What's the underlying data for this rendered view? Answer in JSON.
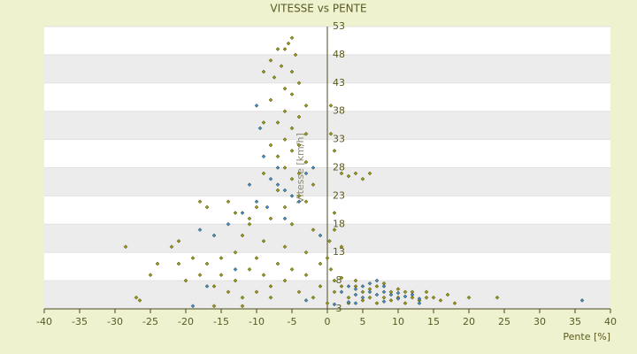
{
  "chart_data": {
    "type": "scatter",
    "title": "VITESSE vs PENTE",
    "xlabel": "Pente [%]",
    "ylabel": "Vitesse [km/h]",
    "xlim": [
      -40,
      40
    ],
    "xticks": [
      -40,
      -35,
      -30,
      -25,
      -20,
      -15,
      -10,
      -5,
      0,
      5,
      10,
      15,
      20,
      25,
      30,
      35,
      40
    ],
    "ylim": [
      3,
      53
    ],
    "yticks": [
      3,
      8,
      13,
      18,
      23,
      28,
      33,
      38,
      43,
      48,
      53
    ],
    "grid": true,
    "series": [
      {
        "color": "#9a9a10",
        "x": [
          -5,
          -5.5,
          -6,
          -7,
          -8,
          -4.5,
          -6.5,
          -5,
          -7.5,
          -9,
          -4,
          -6,
          -5,
          -8,
          -3,
          -6,
          -4,
          -7,
          -5,
          -9,
          -3,
          -6,
          -4,
          -8,
          -5,
          -7,
          -3,
          -6,
          -4,
          -9,
          -5,
          -2,
          -7,
          -4,
          -3,
          -6,
          -10,
          -8,
          -5,
          -2,
          -11,
          -12,
          -9,
          -6,
          -3,
          -13,
          -15,
          -17,
          -19,
          -21,
          -20,
          -18,
          -16,
          -14,
          -12,
          -10,
          -8,
          -6,
          -4,
          -2,
          -25,
          -27,
          -26.5,
          -28.5,
          -24,
          -22,
          -21,
          -18,
          -17,
          -14,
          -13,
          -11,
          -15,
          -13,
          -11,
          -9,
          -7,
          -5,
          -3,
          -1,
          -8,
          -10,
          -12,
          -16,
          0.5,
          0.5,
          1,
          1,
          0.3,
          2,
          3,
          4,
          5,
          6,
          1,
          2,
          0.5,
          1,
          1,
          2,
          3,
          4,
          5,
          6,
          7,
          8,
          9,
          10,
          11,
          12,
          13,
          14,
          15,
          16,
          17,
          18,
          20,
          24,
          3,
          5,
          7,
          9,
          11,
          2,
          4,
          6,
          8,
          10,
          12,
          14,
          -1,
          0,
          0
        ],
        "values": [
          51,
          50,
          49,
          49,
          47,
          48,
          46,
          45,
          44,
          45,
          43,
          42,
          41,
          40,
          39,
          38,
          37,
          36,
          35,
          36,
          34,
          33,
          32,
          32,
          31,
          30,
          29,
          28,
          27,
          27,
          26,
          25,
          24,
          23,
          22,
          21,
          21,
          19,
          18,
          17,
          18,
          16,
          15,
          14,
          13,
          13,
          12,
          11,
          12,
          11,
          8,
          9,
          7,
          6,
          5,
          6,
          7,
          8,
          6,
          5,
          9,
          5,
          4.5,
          14,
          11,
          14,
          15,
          22,
          21,
          22,
          20,
          19,
          9,
          8,
          10,
          9,
          11,
          10,
          9,
          11,
          5,
          12,
          3.5,
          3.5,
          39,
          34,
          31,
          20,
          15,
          27,
          26.5,
          27,
          26,
          27,
          17,
          14,
          10,
          8,
          6,
          7,
          5,
          8,
          6,
          5,
          7,
          5,
          6,
          5,
          6,
          5,
          4.5,
          6,
          5,
          4.5,
          5.5,
          4,
          5,
          5,
          4,
          4.5,
          4,
          4.5,
          4,
          8.5,
          7,
          6.5,
          7.5,
          6.5,
          6,
          5,
          7,
          4,
          12
        ]
      },
      {
        "color": "#3b8fd9",
        "x": [
          -10,
          -9.5,
          -9,
          -8,
          -7,
          -6,
          -5,
          -4,
          -11,
          -10,
          -12,
          -14,
          -16,
          -18,
          -13,
          -17,
          -19,
          -3,
          -2,
          -7,
          -8.5,
          -6,
          -1,
          -3,
          2,
          3,
          4,
          5,
          6,
          7,
          8,
          9,
          10,
          11,
          12,
          13,
          6,
          7,
          8,
          5,
          4,
          3,
          4,
          8,
          36,
          1,
          13,
          10
        ],
        "values": [
          39,
          35,
          30,
          26,
          25,
          24,
          23,
          22,
          25,
          22,
          20,
          18,
          16,
          17,
          10,
          7,
          3.5,
          27,
          28,
          28,
          21,
          19,
          16,
          4.5,
          6,
          7,
          6.5,
          7,
          6,
          5.5,
          6,
          5.5,
          5.8,
          5.2,
          5.5,
          4.8,
          7.5,
          8,
          7,
          5,
          5.5,
          4.2,
          4,
          4.3,
          4.5,
          3.8,
          4,
          4.8
        ]
      }
    ]
  }
}
